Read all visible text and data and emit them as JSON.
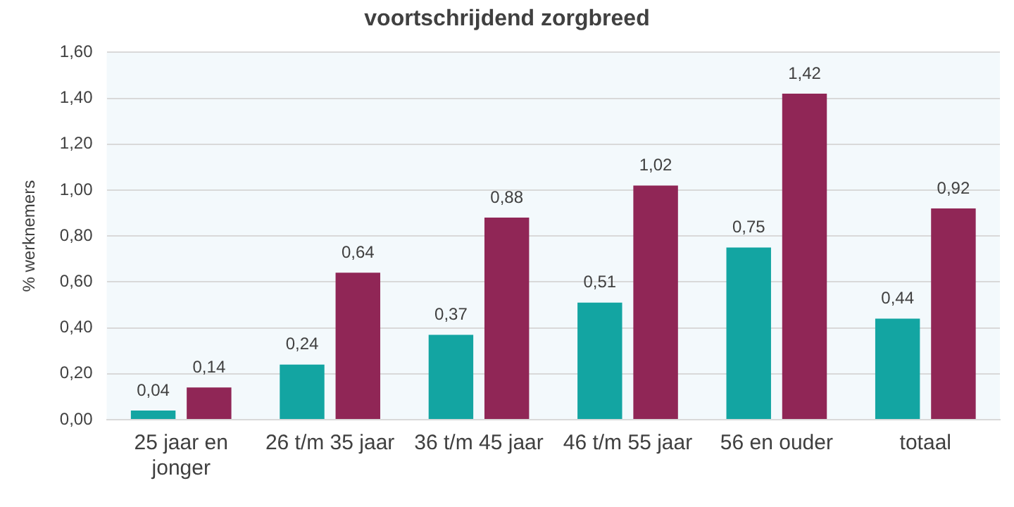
{
  "chart_data": {
    "type": "bar",
    "title": "voortschrijdend zorgbreed",
    "ylabel": "% werknemers",
    "categories": [
      "25 jaar en jonger",
      "26 t/m 35 jaar",
      "36 t/m 45 jaar",
      "46 t/m 55 jaar",
      "56 en ouder",
      "totaal"
    ],
    "series": [
      {
        "color": "#13a5a2",
        "values": [
          0.04,
          0.24,
          0.37,
          0.51,
          0.75,
          0.44
        ],
        "value_labels": [
          "0,04",
          "0,24",
          "0,37",
          "0,51",
          "0,75",
          "0,44"
        ]
      },
      {
        "color": "#902656",
        "values": [
          0.14,
          0.64,
          0.88,
          1.02,
          1.42,
          0.92
        ],
        "value_labels": [
          "0,14",
          "0,64",
          "0,88",
          "1,02",
          "1,42",
          "0,92"
        ]
      }
    ],
    "ylim": [
      0,
      1.6
    ],
    "yticks": [
      {
        "value": 0,
        "label": "0,00"
      },
      {
        "value": 0.2,
        "label": "0,20"
      },
      {
        "value": 0.4,
        "label": "0,40"
      },
      {
        "value": 0.6,
        "label": "0,60"
      },
      {
        "value": 0.8,
        "label": "0,80"
      },
      {
        "value": 1.0,
        "label": "1,00"
      },
      {
        "value": 1.2,
        "label": "1,20"
      },
      {
        "value": 1.4,
        "label": "1,40"
      },
      {
        "value": 1.6,
        "label": "1,60"
      }
    ],
    "grid": "y",
    "legend": false
  }
}
